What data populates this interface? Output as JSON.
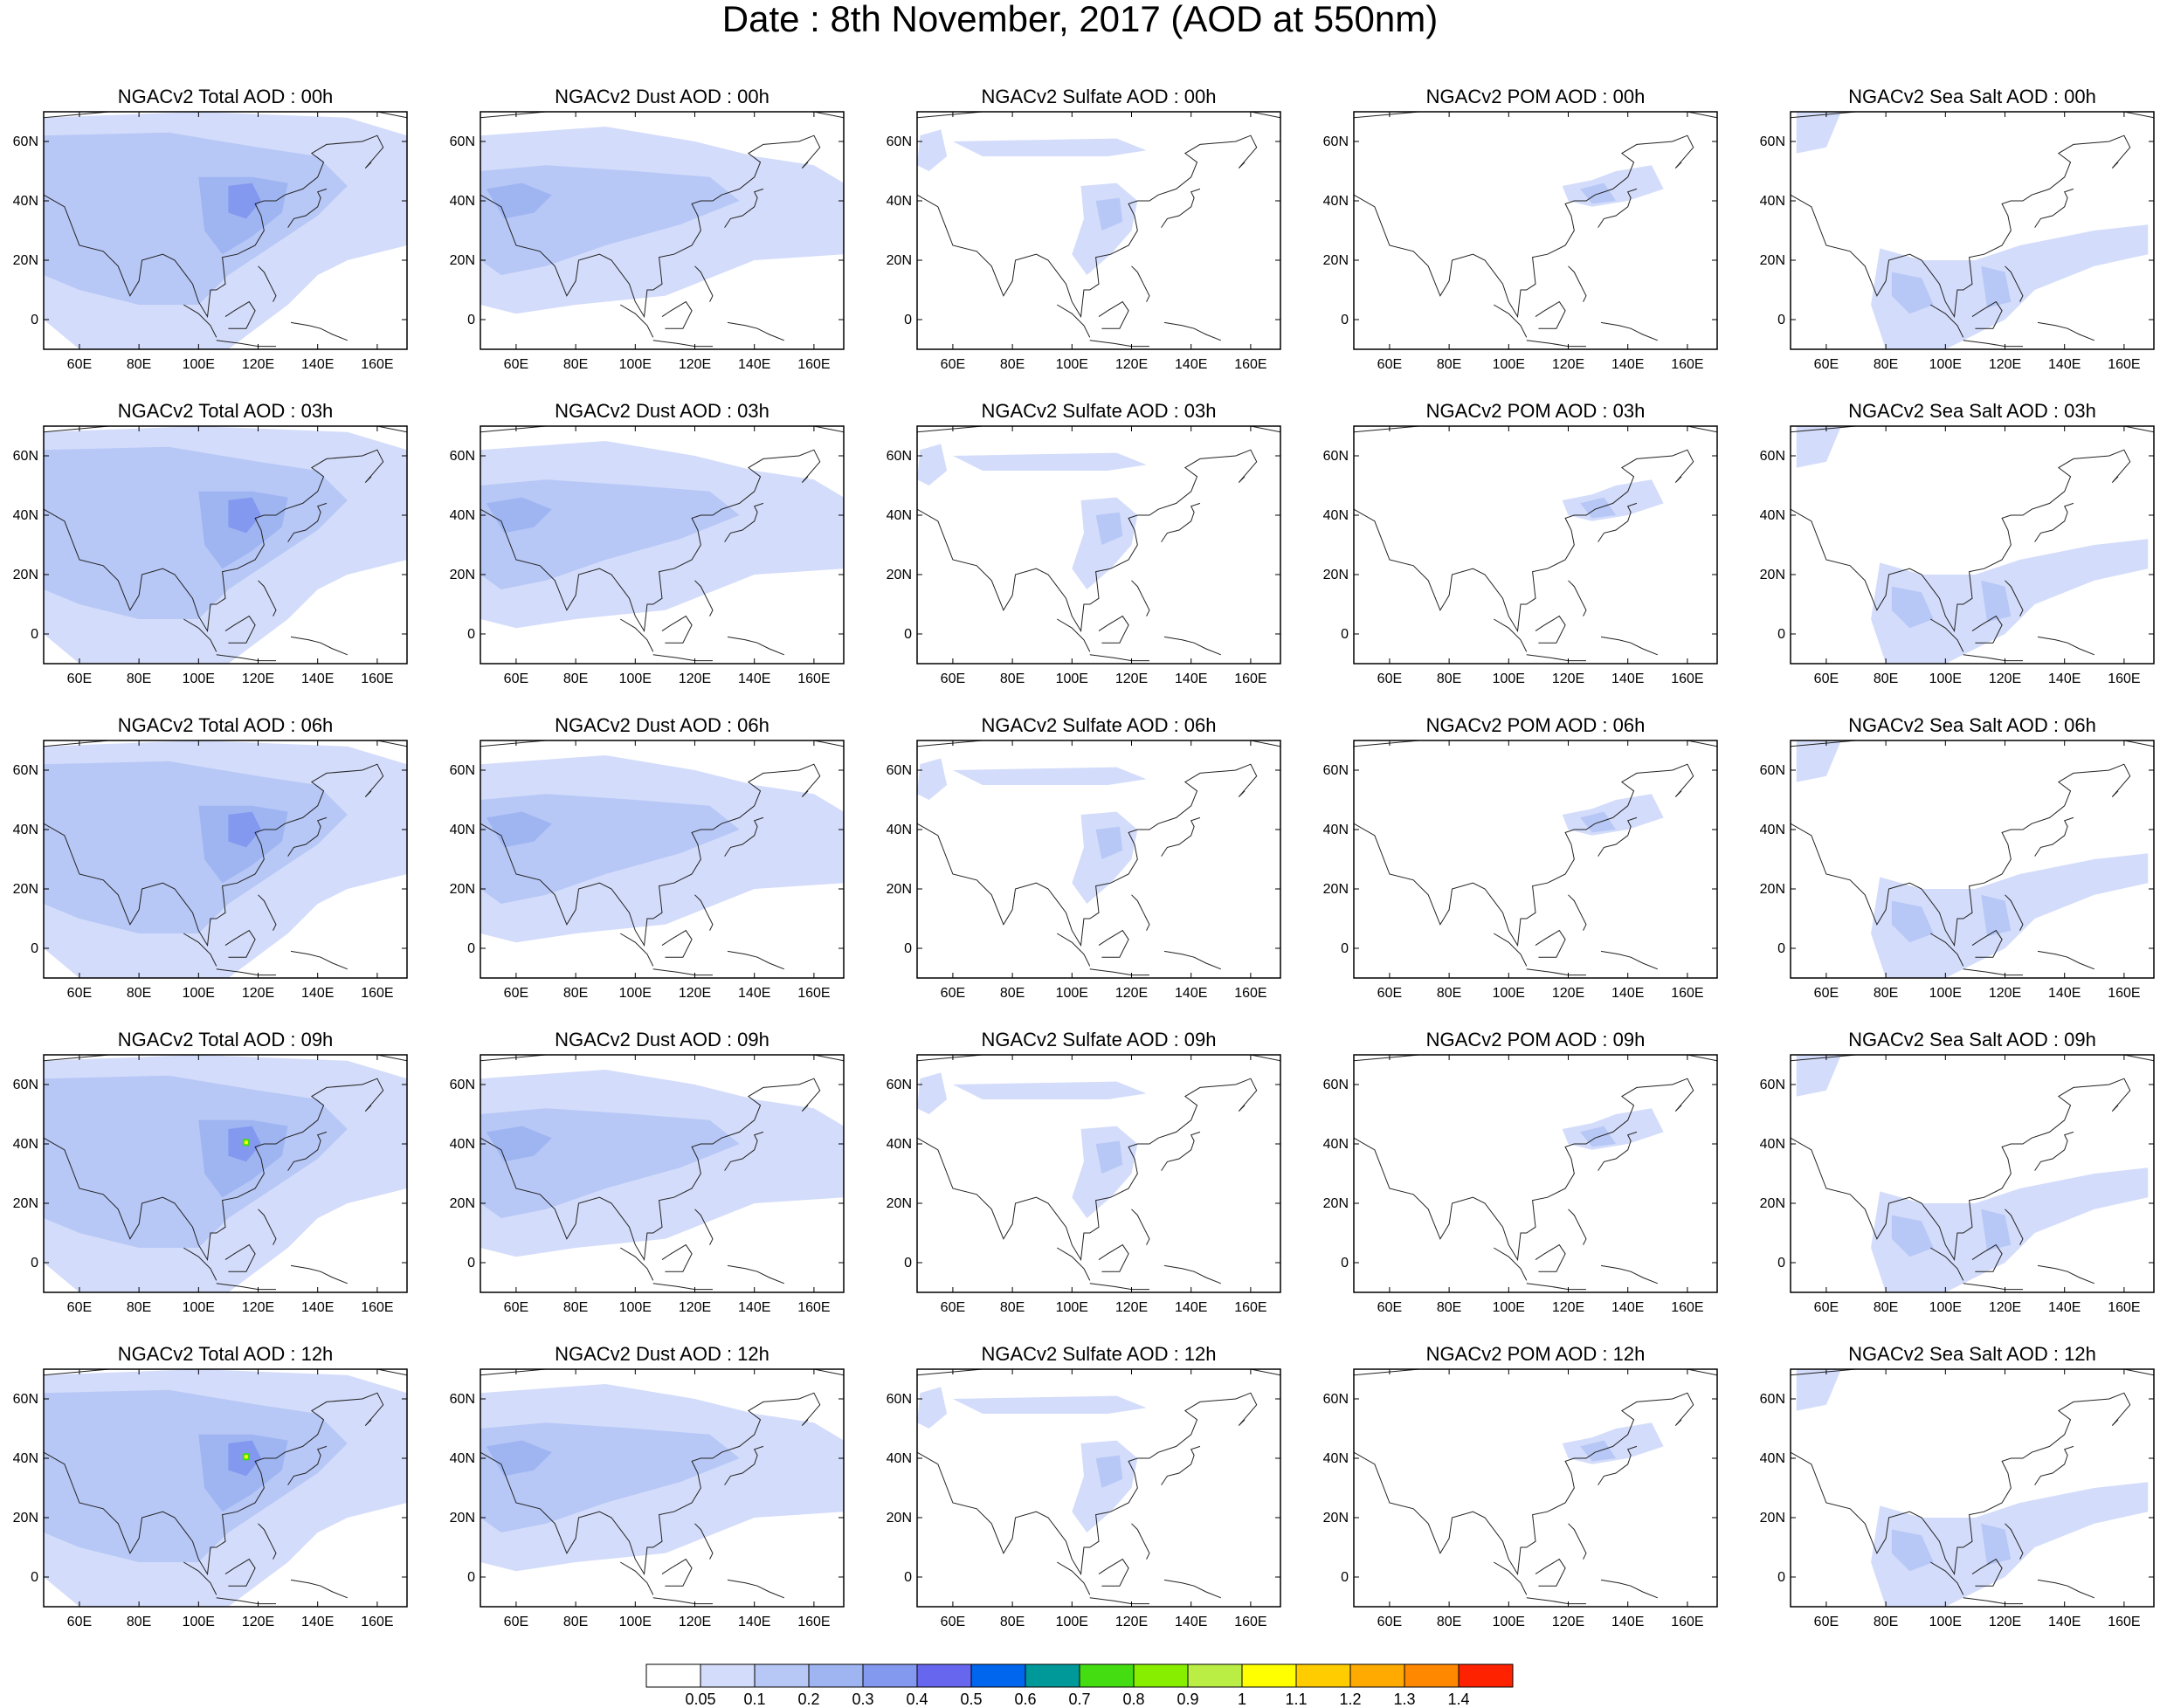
{
  "title": "Date : 8th November, 2017 (AOD at 550nm)",
  "panel_titles": [
    [
      "NGACv2 Total AOD : 00h",
      "NGACv2 Dust AOD : 00h",
      "NGACv2 Sulfate AOD : 00h",
      "NGACv2 POM AOD : 00h",
      "NGACv2 Sea Salt AOD : 00h"
    ],
    [
      "NGACv2 Total AOD : 03h",
      "NGACv2 Dust AOD : 03h",
      "NGACv2 Sulfate AOD : 03h",
      "NGACv2 POM AOD : 03h",
      "NGACv2 Sea Salt AOD : 03h"
    ],
    [
      "NGACv2 Total AOD : 06h",
      "NGACv2 Dust AOD : 06h",
      "NGACv2 Sulfate AOD : 06h",
      "NGACv2 POM AOD : 06h",
      "NGACv2 Sea Salt AOD : 06h"
    ],
    [
      "NGACv2 Total AOD : 09h",
      "NGACv2 Dust AOD : 09h",
      "NGACv2 Sulfate AOD : 09h",
      "NGACv2 POM AOD : 09h",
      "NGACv2 Sea Salt  AOD : 09h"
    ],
    [
      "NGACv2 Total AOD  : 12h",
      "NGACv2 Dust AOD : 12h",
      "NGACv2 Sulfate AOD : 12h",
      "NGACv2 POM  AOD : 12h",
      "NGACv2 Sea Salt  AOD : 12h"
    ]
  ],
  "x_ticks": [
    "60E",
    "80E",
    "100E",
    "120E",
    "140E",
    "160E"
  ],
  "y_ticks": [
    "60N",
    "40N",
    "20N",
    "0"
  ],
  "colorbar": {
    "labels": [
      "0.05",
      "0.1",
      "0.2",
      "0.3",
      "0.4",
      "0.5",
      "0.6",
      "0.7",
      "0.8",
      "0.9",
      "1",
      "1.1",
      "1.2",
      "1.3",
      "1.4"
    ],
    "colors": [
      "#ffffff",
      "#d3dcfa",
      "#b7c7f6",
      "#9fb5f2",
      "#8398ef",
      "#6666ee",
      "#0066ee",
      "#009999",
      "#44dd11",
      "#88ee00",
      "#bbee44",
      "#ffff00",
      "#ffcc00",
      "#ffaa00",
      "#ff8800",
      "#ff2200"
    ]
  },
  "map": {
    "lon_range": [
      48,
      170
    ],
    "lat_range": [
      -10,
      70
    ],
    "rows": [
      "00h",
      "03h",
      "06h",
      "09h",
      "12h"
    ],
    "columns": [
      "Total",
      "Dust",
      "Sulfate",
      "POM",
      "Sea Salt"
    ],
    "pollutant_regions": {
      "Total": [
        {
          "area": "broad Eurasia / Indian Ocean / NW Pacific background",
          "level": "0.1-0.3"
        },
        {
          "area": "North China Plain plume (~115E, 40N)",
          "level": "0.3-0.5, peak 0.7-0.9 at 09h-12h"
        }
      ],
      "Dust": [
        {
          "area": "Central Asia, Tibet, Mongolia, Arabian Sea",
          "level": "0.1-0.3"
        }
      ],
      "Sulfate": [
        {
          "area": "Eastern China band (105-120E, 15-45N)",
          "level": "0.1-0.2"
        },
        {
          "area": "NE Europe edge (~55N)",
          "level": "0.05-0.1"
        }
      ],
      "POM": [
        {
          "area": "NE China / Korea / Japan",
          "level": "0.05-0.2"
        }
      ],
      "Sea Salt": [
        {
          "area": "Bay of Bengal, South China Sea, W Pacific",
          "level": "0.05-0.2"
        }
      ]
    }
  }
}
